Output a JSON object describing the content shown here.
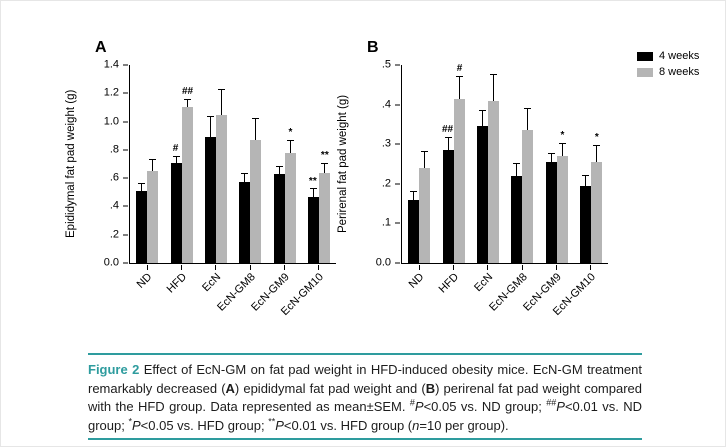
{
  "accent_color": "#2E9C9E",
  "bar_gray": "#b5b5b5",
  "legend": {
    "items": [
      {
        "label": "4 weeks",
        "color": "#000000"
      },
      {
        "label": "8 weeks",
        "color": "#b5b5b5"
      }
    ]
  },
  "chart_data": [
    {
      "type": "bar",
      "panel": "A",
      "ylabel": "Epididymal fat pad weight (g)",
      "xlabel": "",
      "ylim": [
        0,
        1.4
      ],
      "grid": false,
      "legend_position": "outside-top-right",
      "yticks": [
        {
          "value": 0,
          "label": "0.0"
        },
        {
          "value": 0.2,
          "label": ".2"
        },
        {
          "value": 0.4,
          "label": ".4"
        },
        {
          "value": 0.6,
          "label": ".6"
        },
        {
          "value": 0.8,
          "label": ".8"
        },
        {
          "value": 1.0,
          "label": "1.0"
        },
        {
          "value": 1.2,
          "label": "1.2"
        },
        {
          "value": 1.4,
          "label": "1.4"
        }
      ],
      "categories": [
        "ND",
        "HFD",
        "EcN",
        "EcN-GM8",
        "EcN-GM9",
        "EcN-GM10"
      ],
      "series": [
        {
          "name": "4 weeks",
          "color": "#000000",
          "values": [
            0.51,
            0.71,
            0.89,
            0.57,
            0.63,
            0.47
          ],
          "errors": [
            0.05,
            0.04,
            0.14,
            0.06,
            0.05,
            0.05
          ],
          "annotations": [
            "",
            "#",
            "",
            "",
            "",
            "**"
          ]
        },
        {
          "name": "8 weeks",
          "color": "#b5b5b5",
          "values": [
            0.65,
            1.1,
            1.05,
            0.87,
            0.78,
            0.64
          ],
          "errors": [
            0.08,
            0.05,
            0.17,
            0.15,
            0.08,
            0.06
          ],
          "annotations": [
            "",
            "##",
            "",
            "",
            "*",
            "**"
          ]
        }
      ]
    },
    {
      "type": "bar",
      "panel": "B",
      "ylabel": "Perirenal fat pad weight (g)",
      "xlabel": "",
      "ylim": [
        0,
        0.5
      ],
      "grid": false,
      "legend_position": "outside-top-right",
      "yticks": [
        {
          "value": 0,
          "label": "0.0"
        },
        {
          "value": 0.1,
          "label": ".1"
        },
        {
          "value": 0.2,
          "label": ".2"
        },
        {
          "value": 0.3,
          "label": ".3"
        },
        {
          "value": 0.4,
          "label": ".4"
        },
        {
          "value": 0.5,
          "label": ".5"
        }
      ],
      "categories": [
        "ND",
        "HFD",
        "EcN",
        "EcN-GM8",
        "EcN-GM9",
        "EcN-GM10"
      ],
      "series": [
        {
          "name": "4 weeks",
          "color": "#000000",
          "values": [
            0.16,
            0.285,
            0.345,
            0.22,
            0.255,
            0.195
          ],
          "errors": [
            0.02,
            0.03,
            0.04,
            0.03,
            0.02,
            0.025
          ],
          "annotations": [
            "",
            "##",
            "",
            "",
            "",
            ""
          ]
        },
        {
          "name": "8 weeks",
          "color": "#b5b5b5",
          "values": [
            0.24,
            0.415,
            0.41,
            0.335,
            0.27,
            0.255
          ],
          "errors": [
            0.04,
            0.055,
            0.065,
            0.055,
            0.03,
            0.04
          ],
          "annotations": [
            "",
            "#",
            "",
            "",
            "*",
            "*"
          ]
        }
      ]
    }
  ],
  "caption": {
    "segments": [
      {
        "text": "Figure 2",
        "style": "label"
      },
      {
        "text": " Effect of EcN-GM on fat pad weight in HFD-induced obesity mice. EcN-GM treatment remarkably decreased (",
        "style": "n"
      },
      {
        "text": "A",
        "style": "b"
      },
      {
        "text": ") epididymal fat pad weight and (",
        "style": "n"
      },
      {
        "text": "B",
        "style": "b"
      },
      {
        "text": ") perirenal fat pad weight compared with the HFD group. Data represented as mean±SEM. ",
        "style": "n"
      },
      {
        "text": "#",
        "style": "sup"
      },
      {
        "text": "P",
        "style": "i"
      },
      {
        "text": "<0.05 vs. ND group; ",
        "style": "n"
      },
      {
        "text": "##",
        "style": "sup"
      },
      {
        "text": "P",
        "style": "i"
      },
      {
        "text": "<0.01 vs. ND group; ",
        "style": "n"
      },
      {
        "text": "*",
        "style": "sup"
      },
      {
        "text": "P",
        "style": "i"
      },
      {
        "text": "<0.05 vs. HFD group; ",
        "style": "n"
      },
      {
        "text": "**",
        "style": "sup"
      },
      {
        "text": "P",
        "style": "i"
      },
      {
        "text": "<0.01 vs. HFD group (",
        "style": "n"
      },
      {
        "text": "n",
        "style": "i"
      },
      {
        "text": "=10 per group).",
        "style": "n"
      }
    ]
  }
}
